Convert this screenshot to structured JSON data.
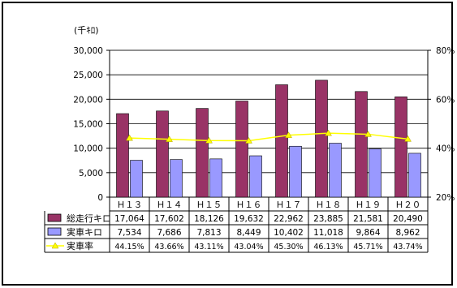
{
  "chart_data": {
    "type": "bar+line",
    "unit_label": "(千ｷﾛ)",
    "categories": [
      "H13",
      "H14",
      "H15",
      "H16",
      "H17",
      "H18",
      "H19",
      "H20"
    ],
    "category_display": [
      "Ｈ１３",
      "Ｈ１４",
      "Ｈ１５",
      "Ｈ１６",
      "Ｈ１７",
      "Ｈ１８",
      "Ｈ１９",
      "Ｈ２０"
    ],
    "y_left": {
      "min": 0,
      "max": 30000,
      "ticks": [
        0,
        5000,
        10000,
        15000,
        20000,
        25000,
        30000
      ],
      "tick_labels": [
        "0",
        "5,000",
        "10,000",
        "15,000",
        "20,000",
        "25,000",
        "30,000"
      ]
    },
    "y_right": {
      "min": 0.2,
      "max": 0.8,
      "ticks": [
        0.2,
        0.4,
        0.6,
        0.8
      ],
      "tick_labels": [
        "20%",
        "40%",
        "60%",
        "80%"
      ]
    },
    "series": [
      {
        "name": "総走行キロ",
        "type": "bar",
        "axis": "left",
        "color": "#993366",
        "values": [
          17064,
          17602,
          18126,
          19632,
          22962,
          23885,
          21581,
          20490
        ],
        "labels": [
          "17,064",
          "17,602",
          "18,126",
          "19,632",
          "22,962",
          "23,885",
          "21,581",
          "20,490"
        ]
      },
      {
        "name": "実車キロ",
        "type": "bar",
        "axis": "left",
        "color": "#9999ff",
        "values": [
          7534,
          7686,
          7813,
          8449,
          10402,
          11018,
          9864,
          8962
        ],
        "labels": [
          "7,534",
          "7,686",
          "7,813",
          "8,449",
          "10,402",
          "11,018",
          "9,864",
          "8,962"
        ]
      },
      {
        "name": "実車率",
        "type": "line",
        "axis": "right",
        "color": "#ffff00",
        "values": [
          0.4415,
          0.4366,
          0.4311,
          0.4304,
          0.453,
          0.4613,
          0.4571,
          0.4374
        ],
        "labels": [
          "44.15%",
          "43.66%",
          "43.11%",
          "43.04%",
          "45.30%",
          "46.13%",
          "45.71%",
          "43.74%"
        ]
      }
    ],
    "grid": "horizontal",
    "legend": "data-table"
  }
}
